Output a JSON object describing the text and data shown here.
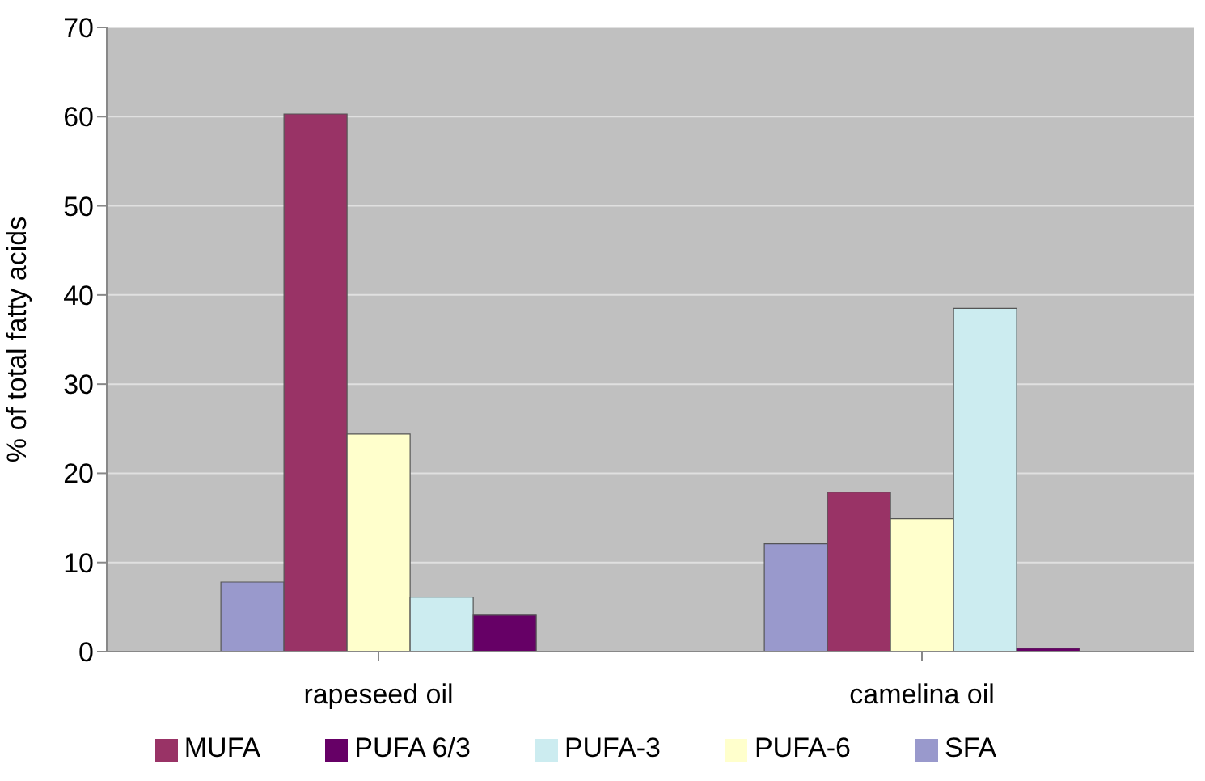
{
  "chart_data": {
    "type": "bar",
    "ylabel": "% of total fatty acids",
    "categories": [
      "rapeseed oil",
      "camelina oil"
    ],
    "series": [
      {
        "name": "SFA",
        "color": "#9999cc",
        "values": [
          7.8,
          12.1
        ]
      },
      {
        "name": "MUFA",
        "color": "#993366",
        "values": [
          60.3,
          17.9
        ]
      },
      {
        "name": "PUFA-6",
        "color": "#ffffcc",
        "values": [
          24.4,
          14.9
        ]
      },
      {
        "name": "PUFA-3",
        "color": "#ccecf0",
        "values": [
          6.1,
          38.5
        ]
      },
      {
        "name": "PUFA 6/3",
        "color": "#660066",
        "values": [
          4.1,
          0.4
        ]
      }
    ],
    "ylim": [
      0,
      70
    ],
    "yticks": [
      0,
      10,
      20,
      30,
      40,
      50,
      60,
      70
    ],
    "grid": "y",
    "legend": "bottom"
  }
}
